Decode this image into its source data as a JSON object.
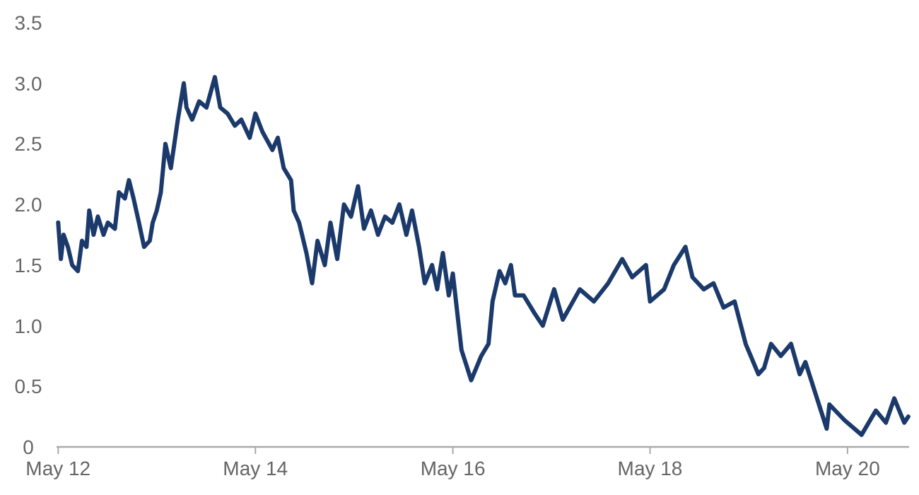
{
  "chart_data": {
    "type": "line",
    "xlim": [
      "2012-04-25",
      "2020-12-15"
    ],
    "ylim": [
      0,
      3.5
    ],
    "xticks": [
      {
        "value": "2012-05-01",
        "label": "May 12"
      },
      {
        "value": "2014-05-01",
        "label": "May 14"
      },
      {
        "value": "2016-05-01",
        "label": "May 16"
      },
      {
        "value": "2018-05-01",
        "label": "May 18"
      },
      {
        "value": "2020-05-01",
        "label": "May 20"
      }
    ],
    "yticks": [
      0,
      {
        "value": 0.5,
        "label": "0.5"
      },
      {
        "value": 1,
        "label": "1.0"
      },
      {
        "value": 1.5,
        "label": "1.5"
      },
      {
        "value": 2,
        "label": "2.0"
      },
      {
        "value": 2.5,
        "label": "2.5"
      },
      {
        "value": 3,
        "label": "3.0"
      },
      {
        "value": 3.5,
        "label": "3.5"
      }
    ],
    "grid": false,
    "line_style": "solid",
    "marker": "none",
    "series": [
      {
        "color": "#1b3a6b",
        "x": [
          "2012-05-01",
          "2012-05-11",
          "2012-05-21",
          "2012-06-06",
          "2012-06-22",
          "2012-07-13",
          "2012-07-28",
          "2012-08-14",
          "2012-08-24",
          "2012-09-09",
          "2012-09-25",
          "2012-10-16",
          "2012-11-01",
          "2012-11-27",
          "2012-12-12",
          "2013-01-03",
          "2013-01-18",
          "2013-02-04",
          "2013-02-24",
          "2013-03-15",
          "2013-04-05",
          "2013-04-16",
          "2013-05-01",
          "2013-05-16",
          "2013-06-02",
          "2013-06-22",
          "2013-07-18",
          "2013-08-09",
          "2013-08-19",
          "2013-09-09",
          "2013-10-05",
          "2013-11-01",
          "2013-12-02",
          "2013-12-22",
          "2014-01-18",
          "2014-02-14",
          "2014-03-10",
          "2014-04-10",
          "2014-05-01",
          "2014-05-27",
          "2014-07-03",
          "2014-07-23",
          "2014-08-14",
          "2014-09-10",
          "2014-09-20",
          "2014-10-10",
          "2014-11-06",
          "2014-11-27",
          "2014-12-17",
          "2015-01-13",
          "2015-02-03",
          "2015-02-28",
          "2015-03-25",
          "2015-04-20",
          "2015-05-16",
          "2015-06-07",
          "2015-07-03",
          "2015-07-29",
          "2015-08-24",
          "2015-09-20",
          "2015-10-16",
          "2015-11-11",
          "2015-12-02",
          "2015-12-28",
          "2016-01-18",
          "2016-02-14",
          "2016-03-04",
          "2016-03-25",
          "2016-04-16",
          "2016-05-01",
          "2016-06-02",
          "2016-07-08",
          "2016-08-14",
          "2016-09-10",
          "2016-09-25",
          "2016-10-21",
          "2016-11-11",
          "2016-12-02",
          "2016-12-17",
          "2017-01-18",
          "2017-02-28",
          "2017-03-30",
          "2017-05-11",
          "2017-06-12",
          "2017-08-14",
          "2017-10-05",
          "2017-11-27",
          "2018-01-18",
          "2018-02-24",
          "2018-04-16",
          "2018-05-01",
          "2018-06-22",
          "2018-07-28",
          "2018-09-09",
          "2018-10-05",
          "2018-11-16",
          "2018-12-22",
          "2019-01-28",
          "2019-03-10",
          "2019-04-20",
          "2019-06-06",
          "2019-06-27",
          "2019-07-23",
          "2019-08-28",
          "2019-10-05",
          "2019-11-06",
          "2019-11-27",
          "2020-02-14",
          "2020-02-24",
          "2020-04-20",
          "2020-06-22",
          "2020-08-14",
          "2020-09-20",
          "2020-10-21",
          "2020-11-27",
          "2020-12-12"
        ],
        "values": [
          1.85,
          1.55,
          1.75,
          1.65,
          1.5,
          1.45,
          1.7,
          1.65,
          1.95,
          1.75,
          1.9,
          1.75,
          1.85,
          1.8,
          2.1,
          2.05,
          2.2,
          2.05,
          1.85,
          1.65,
          1.7,
          1.85,
          1.95,
          2.1,
          2.5,
          2.3,
          2.7,
          3.0,
          2.8,
          2.7,
          2.85,
          2.8,
          3.05,
          2.8,
          2.75,
          2.65,
          2.7,
          2.55,
          2.75,
          2.6,
          2.45,
          2.55,
          2.3,
          2.2,
          1.95,
          1.85,
          1.6,
          1.35,
          1.7,
          1.5,
          1.85,
          1.55,
          2.0,
          1.9,
          2.15,
          1.8,
          1.95,
          1.75,
          1.9,
          1.85,
          2.0,
          1.75,
          1.95,
          1.65,
          1.35,
          1.5,
          1.3,
          1.6,
          1.25,
          1.43,
          0.8,
          0.55,
          0.75,
          0.85,
          1.2,
          1.45,
          1.35,
          1.5,
          1.25,
          1.25,
          1.1,
          1.0,
          1.3,
          1.05,
          1.3,
          1.2,
          1.35,
          1.55,
          1.4,
          1.5,
          1.2,
          1.3,
          1.5,
          1.65,
          1.4,
          1.3,
          1.35,
          1.15,
          1.2,
          0.85,
          0.6,
          0.65,
          0.85,
          0.75,
          0.85,
          0.6,
          0.7,
          0.15,
          0.35,
          0.22,
          0.1,
          0.3,
          0.2,
          0.4,
          0.2,
          0.25
        ]
      }
    ]
  }
}
